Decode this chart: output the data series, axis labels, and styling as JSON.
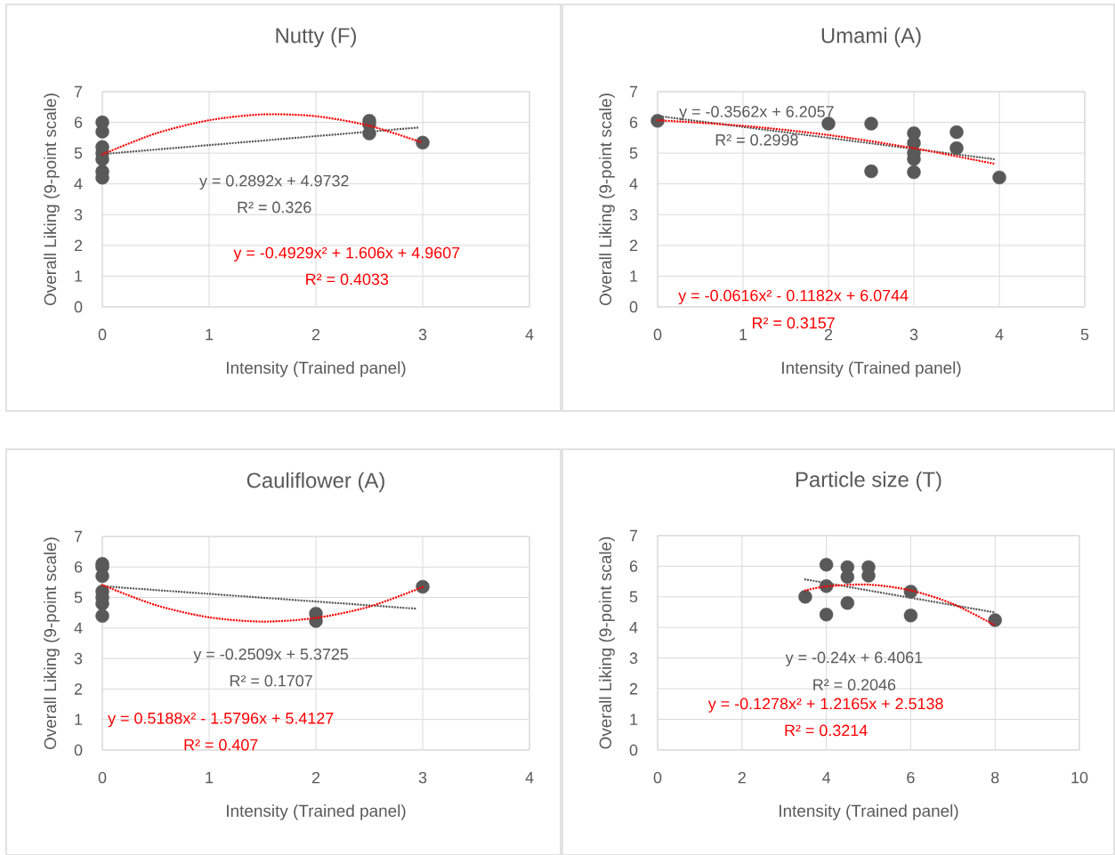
{
  "chart_data": [
    {
      "type": "scatter",
      "title": "Nutty (F)",
      "xlabel": "Intensity (Trained panel)",
      "ylabel": "Overall Liking (9-point scale)",
      "xlim": [
        0,
        4
      ],
      "ylim": [
        0,
        7
      ],
      "xticks": [
        0,
        1,
        2,
        3,
        4
      ],
      "yticks": [
        0,
        1,
        2,
        3,
        4,
        5,
        6,
        7
      ],
      "grid": true,
      "marker": "circle",
      "series": [
        {
          "color": "#595959",
          "x": [
            0,
            0,
            0,
            0,
            0,
            0,
            0,
            2.5,
            2.5,
            2.5,
            3
          ],
          "values": [
            6.0,
            5.7,
            5.2,
            5.0,
            4.8,
            4.4,
            4.2,
            6.05,
            5.93,
            5.64,
            5.34
          ]
        },
        {
          "type": "line",
          "name": "y = 0.2892x + 4.9732",
          "color": "#595959",
          "line_style": "dotted",
          "marker": "none",
          "x": [
            0,
            2.95
          ],
          "values": [
            4.97,
            5.83
          ]
        },
        {
          "type": "line",
          "name": "y = -0.4929x² + 1.606x + 4.9607",
          "color": "#ff0000",
          "line_style": "dotted",
          "marker": "none",
          "x": [
            0,
            0.5,
            1,
            1.5,
            2,
            2.5,
            3
          ],
          "values": [
            4.96,
            5.64,
            6.07,
            6.26,
            6.2,
            5.89,
            5.34
          ]
        }
      ],
      "annotations": [
        "R² = 0.326",
        "R² = 0.4033"
      ]
    },
    {
      "type": "scatter",
      "title": "Umami (A)",
      "xlabel": "Intensity (Trained panel)",
      "ylabel": "Overall Liking (9-point scale)",
      "xlim": [
        0,
        5
      ],
      "ylim": [
        0,
        7
      ],
      "xticks": [
        0,
        1,
        2,
        3,
        4,
        5
      ],
      "yticks": [
        0,
        1,
        2,
        3,
        4,
        5,
        6,
        7
      ],
      "grid": true,
      "marker": "circle",
      "series": [
        {
          "color": "#595959",
          "x": [
            0,
            2,
            2.5,
            2.5,
            3,
            3,
            3,
            3,
            3,
            3.5,
            3.5,
            4
          ],
          "values": [
            6.05,
            5.96,
            5.96,
            4.41,
            5.65,
            5.33,
            5.01,
            4.81,
            4.38,
            5.68,
            5.16,
            4.21
          ]
        },
        {
          "type": "line",
          "name": "y = -0.3562x + 6.2057",
          "color": "#595959",
          "line_style": "dotted",
          "marker": "none",
          "x": [
            0,
            3.95
          ],
          "values": [
            6.21,
            4.8
          ]
        },
        {
          "type": "line",
          "name": "y = -0.0616x² - 0.1182x + 6.0744",
          "color": "#ff0000",
          "line_style": "dotted",
          "marker": "none",
          "x": [
            0,
            1,
            2,
            3,
            3.95
          ],
          "values": [
            6.07,
            5.89,
            5.59,
            5.16,
            4.65
          ]
        }
      ],
      "annotations": [
        "R² = 0.2998",
        "R² = 0.3157"
      ]
    },
    {
      "type": "scatter",
      "title": "Cauliflower (A)",
      "xlabel": "Intensity (Trained panel)",
      "ylabel": "Overall Liking (9-point scale)",
      "xlim": [
        0,
        4
      ],
      "ylim": [
        0,
        7
      ],
      "xticks": [
        0,
        1,
        2,
        3,
        4
      ],
      "yticks": [
        0,
        1,
        2,
        3,
        4,
        5,
        6,
        7
      ],
      "grid": true,
      "marker": "circle",
      "series": [
        {
          "color": "#595959",
          "x": [
            0,
            0,
            0,
            0,
            0,
            0,
            0,
            2,
            2,
            3
          ],
          "values": [
            6.1,
            6.0,
            5.7,
            5.2,
            5.0,
            4.8,
            4.4,
            4.47,
            4.23,
            5.35
          ]
        },
        {
          "type": "line",
          "name": "y = -0.2509x + 5.3725",
          "color": "#595959",
          "line_style": "dotted",
          "marker": "none",
          "x": [
            0,
            2.95
          ],
          "values": [
            5.37,
            4.63
          ]
        },
        {
          "type": "line",
          "name": "y = 0.5188x² - 1.5796x + 5.4127",
          "color": "#ff0000",
          "line_style": "dotted",
          "marker": "none",
          "x": [
            0,
            0.5,
            1,
            1.5,
            2,
            2.5,
            3
          ],
          "values": [
            5.41,
            4.75,
            4.35,
            4.21,
            4.33,
            4.7,
            5.34
          ]
        }
      ],
      "annotations": [
        "R² = 0.1707",
        "R² = 0.407"
      ]
    },
    {
      "type": "scatter",
      "title": "Particle size (T)",
      "xlabel": "Intensity (Trained panel)",
      "ylabel": "Overall Liking (9-point scale)",
      "xlim": [
        0,
        10
      ],
      "ylim": [
        0,
        7
      ],
      "xticks": [
        0,
        2,
        4,
        6,
        8,
        10
      ],
      "yticks": [
        0,
        1,
        2,
        3,
        4,
        5,
        6,
        7
      ],
      "grid": true,
      "marker": "circle",
      "series": [
        {
          "color": "#595959",
          "x": [
            3.5,
            4,
            4,
            4,
            4.5,
            4.5,
            4.5,
            5,
            5,
            6,
            6,
            8
          ],
          "values": [
            5.0,
            6.05,
            5.35,
            4.42,
            5.97,
            5.65,
            4.8,
            5.97,
            5.69,
            5.17,
            4.39,
            4.24
          ]
        },
        {
          "type": "line",
          "name": "y = -0.24x + 6.4061",
          "color": "#595959",
          "line_style": "dotted",
          "marker": "none",
          "x": [
            3.5,
            8
          ],
          "values": [
            5.57,
            4.49
          ]
        },
        {
          "type": "line",
          "name": "y = -0.1278x² + 1.2165x + 2.5138",
          "color": "#ff0000",
          "line_style": "dotted",
          "marker": "none",
          "x": [
            3.5,
            4,
            5,
            6,
            7,
            8
          ],
          "values": [
            5.21,
            5.34,
            5.4,
            5.21,
            4.77,
            4.07
          ]
        }
      ],
      "annotations": [
        "R² = 0.2046",
        "R² = 0.3214"
      ]
    }
  ]
}
